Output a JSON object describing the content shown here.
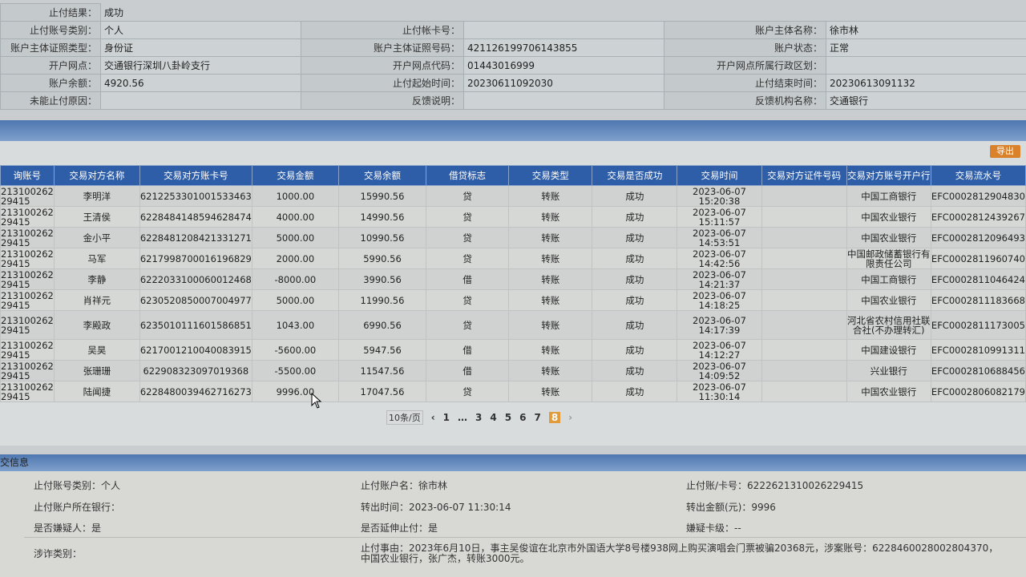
{
  "info": {
    "result_label": "止付结果：",
    "result_value": "成功",
    "rows": [
      [
        [
          "止付账号类别：",
          "个人"
        ],
        [
          "止付帐卡号：",
          ""
        ],
        [
          "账户主体名称：",
          "徐市林"
        ]
      ],
      [
        [
          "账户主体证照类型：",
          "身份证"
        ],
        [
          "账户主体证照号码：",
          "421126199706143855"
        ],
        [
          "账户状态：",
          "正常"
        ]
      ],
      [
        [
          "开户网点：",
          "交通银行深圳八卦岭支行"
        ],
        [
          "开户网点代码：",
          "01443016999"
        ],
        [
          "开户网点所属行政区划：",
          ""
        ]
      ],
      [
        [
          "账户余额：",
          "4920.56"
        ],
        [
          "止付起始时间：",
          "20230611092030"
        ],
        [
          "止付结束时间：",
          "20230613091132"
        ]
      ],
      [
        [
          "未能止付原因：",
          ""
        ],
        [
          "反馈说明：",
          ""
        ],
        [
          "反馈机构名称：",
          "交通银行"
        ]
      ]
    ]
  },
  "export_label": "导出",
  "table": {
    "headers": [
      "询账号",
      "交易对方名称",
      "交易对方账卡号",
      "交易金额",
      "交易余额",
      "借贷标志",
      "交易类型",
      "交易是否成功",
      "交易时间",
      "交易对方证件号码",
      "交易对方账号开户行",
      "交易流水号"
    ],
    "rows": [
      [
        "213100262\n29415",
        "李明洋",
        "6212253301001533463",
        "1000.00",
        "15990.56",
        "贷",
        "转账",
        "成功",
        "2023-06-07 15:20:38",
        "",
        "中国工商银行",
        "EFC0002812904830"
      ],
      [
        "213100262\n29415",
        "王清侯",
        "6228484148594628474",
        "4000.00",
        "14990.56",
        "贷",
        "转账",
        "成功",
        "2023-06-07 15:11:57",
        "",
        "中国农业银行",
        "EFC0002812439267"
      ],
      [
        "213100262\n29415",
        "金小平",
        "6228481208421331271",
        "5000.00",
        "10990.56",
        "贷",
        "转账",
        "成功",
        "2023-06-07 14:53:51",
        "",
        "中国农业银行",
        "EFC0002812096493"
      ],
      [
        "213100262\n29415",
        "马军",
        "6217998700016196829",
        "2000.00",
        "5990.56",
        "贷",
        "转账",
        "成功",
        "2023-06-07 14:42:56",
        "",
        "中国邮政储蓄银行有限责任公司",
        "EFC0002811960740"
      ],
      [
        "213100262\n29415",
        "李静",
        "6222033100060012468",
        "-8000.00",
        "3990.56",
        "借",
        "转账",
        "成功",
        "2023-06-07 14:21:37",
        "",
        "中国工商银行",
        "EFC0002811046424"
      ],
      [
        "213100262\n29415",
        "肖祥元",
        "6230520850007004977",
        "5000.00",
        "11990.56",
        "贷",
        "转账",
        "成功",
        "2023-06-07 14:18:25",
        "",
        "中国农业银行",
        "EFC0002811183668"
      ],
      [
        "213100262\n29415",
        "李殿政",
        "6235010111601586851",
        "1043.00",
        "6990.56",
        "贷",
        "转账",
        "成功",
        "2023-06-07 14:17:39",
        "",
        "河北省农村信用社联合社(不办理转汇)",
        "EFC0002811173005"
      ],
      [
        "213100262\n29415",
        "吴昊",
        "6217001210040083915",
        "-5600.00",
        "5947.56",
        "借",
        "转账",
        "成功",
        "2023-06-07 14:12:27",
        "",
        "中国建设银行",
        "EFC0002810991311"
      ],
      [
        "213100262\n29415",
        "张珊珊",
        "622908323097019368",
        "-5500.00",
        "11547.56",
        "借",
        "转账",
        "成功",
        "2023-06-07 14:09:52",
        "",
        "兴业银行",
        "EFC0002810688456"
      ],
      [
        "213100262\n29415",
        "陆闻捷",
        "6228480039462716273",
        "9996.00",
        "17047.56",
        "贷",
        "转账",
        "成功",
        "2023-06-07 11:30:14",
        "",
        "中国农业银行",
        "EFC0002806082179"
      ]
    ]
  },
  "pager": {
    "page_size": "10条/页",
    "prev": "‹",
    "pages": [
      "1",
      "…",
      "3",
      "4",
      "5",
      "6",
      "7",
      "8"
    ],
    "current": "8",
    "next": "›"
  },
  "detail": {
    "title": "交信息",
    "acct_type": "止付账号类别：个人",
    "acct_name": "止付账户名：徐市林",
    "card_no": "止付账/卡号：6222621310026229415",
    "bank": "止付账户所在银行：",
    "out_time": "转出时间：2023-06-07 11:30:14",
    "out_amount": "转出金额(元)：9996",
    "suspect": "是否嫌疑人：是",
    "extend": "是否延伸止付：是",
    "card_level": "嫌疑卡级：--",
    "fraud_type": "涉诈类别：",
    "reason": "止付事由：2023年6月10日，事主吴俊谊在北京市外国语大学8号楼938网上购买演唱会门票被骗20368元，涉案账号：6228460028002804370，中国农业银行，张广杰，转账3000元。"
  },
  "colors": {
    "header_blue": "#2f5ea8",
    "accent_orange": "#e19a3c"
  }
}
